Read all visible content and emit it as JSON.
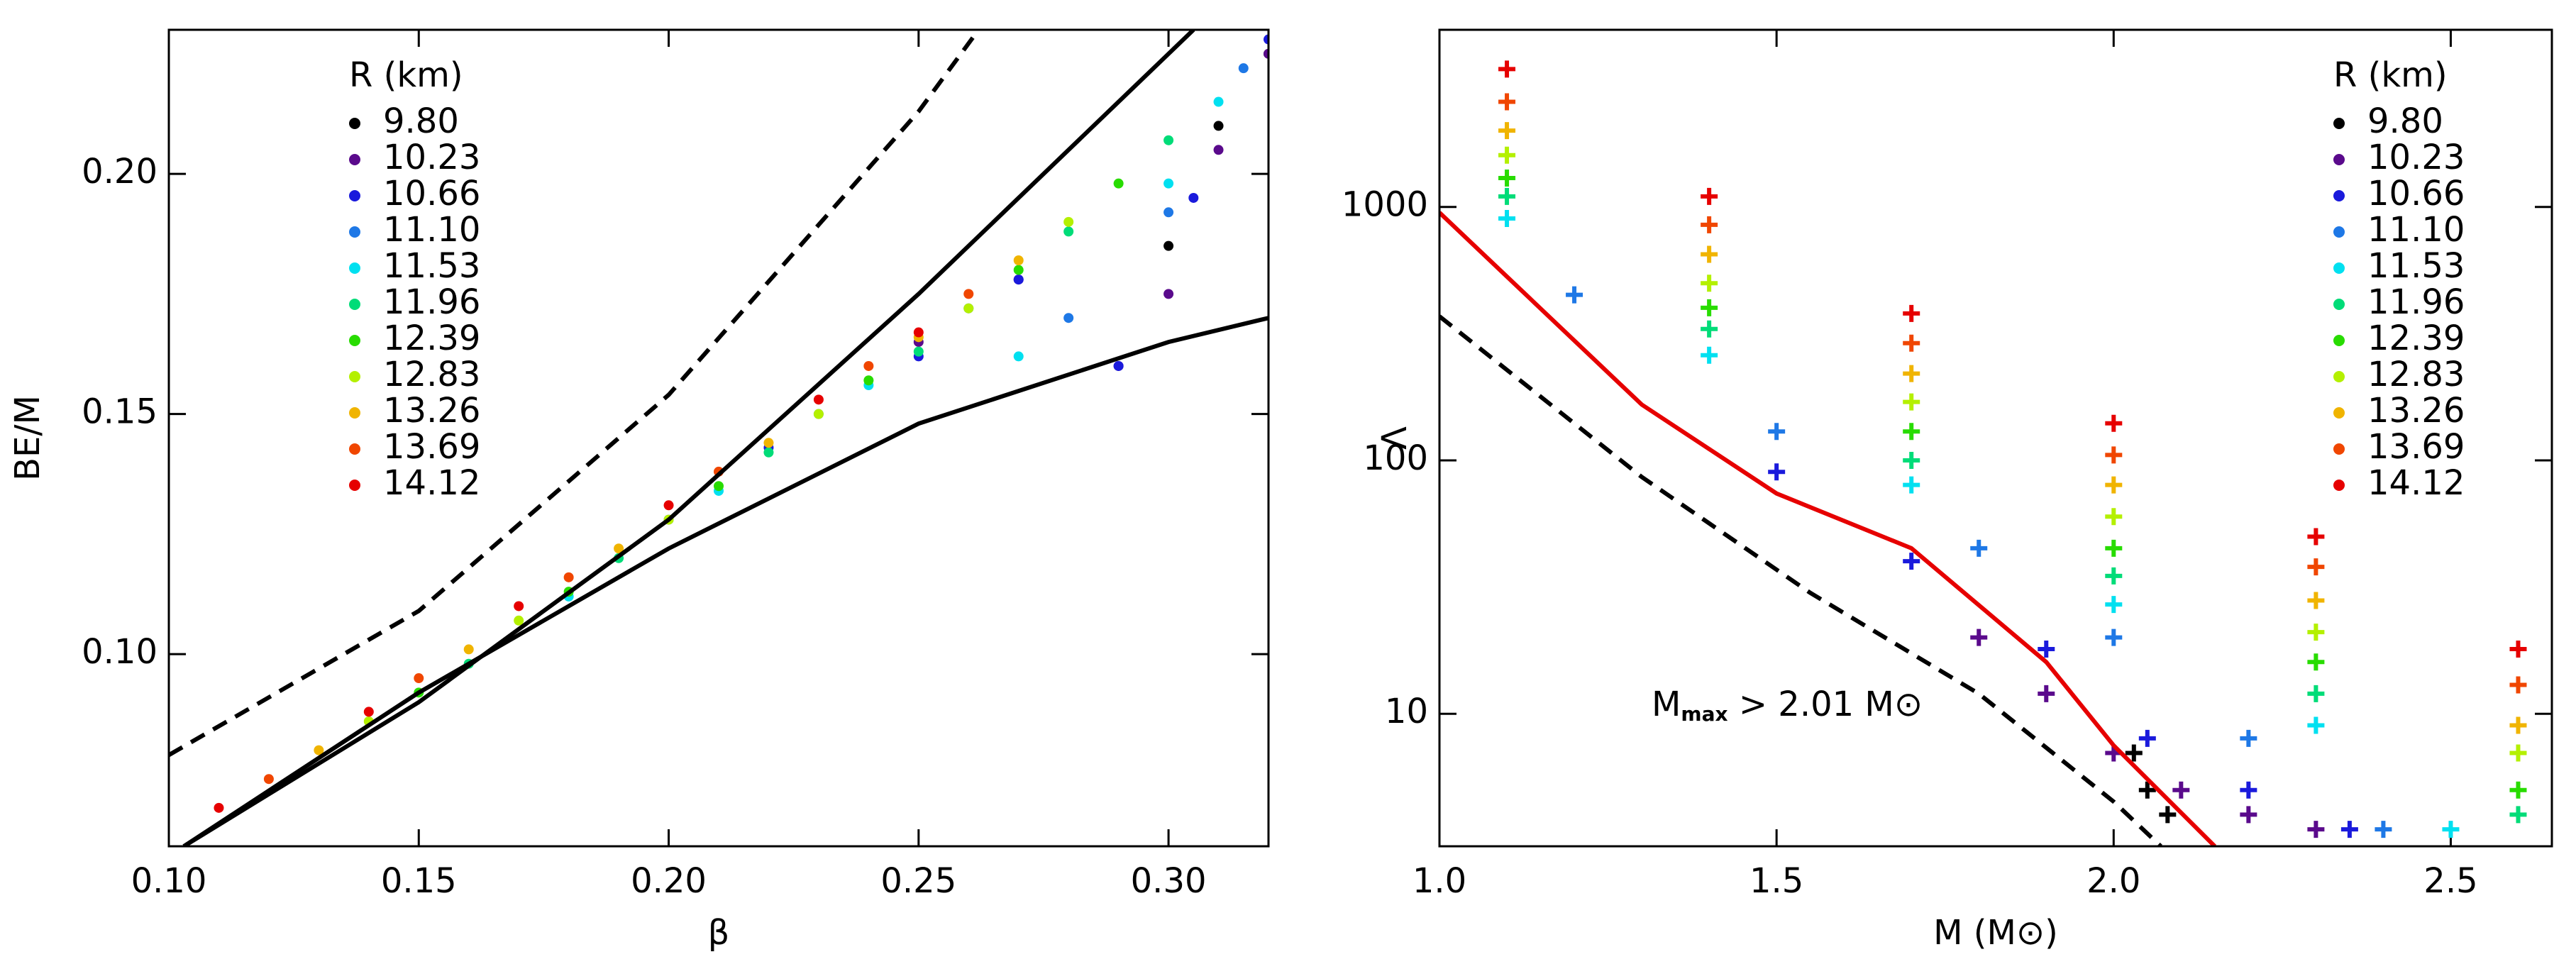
{
  "chart_data": [
    {
      "type": "scatter",
      "xlabel": "β",
      "ylabel": "BE/M",
      "marker": "circle",
      "ylog": false,
      "xlim": [
        0.1,
        0.32
      ],
      "ylim": [
        0.06,
        0.23
      ],
      "xticks": [
        {
          "value": 0.1,
          "label": "0.10"
        },
        0.15,
        {
          "value": 0.2,
          "label": "0.20"
        },
        0.25,
        {
          "value": 0.3,
          "label": "0.30"
        }
      ],
      "yticks": [
        {
          "value": 0.1,
          "label": "0.10"
        },
        0.15,
        {
          "value": 0.2,
          "label": "0.20"
        }
      ],
      "legend_title": "R (km)",
      "legend": "upper left",
      "series": [
        {
          "name": "9.80",
          "color": "#000000",
          "x": [
            0.3,
            0.31,
            0.32
          ],
          "values": [
            0.185,
            0.21,
            0.225
          ]
        },
        {
          "name": "10.23",
          "color": "#5a0a8c",
          "x": [
            0.25,
            0.27,
            0.29,
            0.3,
            0.31,
            0.32
          ],
          "values": [
            0.165,
            0.178,
            0.16,
            0.175,
            0.205,
            0.225
          ]
        },
        {
          "name": "10.66",
          "color": "#1a1adc",
          "x": [
            0.22,
            0.25,
            0.27,
            0.29,
            0.305,
            0.32
          ],
          "values": [
            0.143,
            0.162,
            0.178,
            0.16,
            0.195,
            0.228
          ]
        },
        {
          "name": "11.10",
          "color": "#1e78e6",
          "x": [
            0.2,
            0.23,
            0.26,
            0.28,
            0.3,
            0.315
          ],
          "values": [
            0.128,
            0.15,
            0.172,
            0.17,
            0.192,
            0.222
          ]
        },
        {
          "name": "11.53",
          "color": "#00e0f0",
          "x": [
            0.18,
            0.21,
            0.24,
            0.27,
            0.3,
            0.31
          ],
          "values": [
            0.112,
            0.134,
            0.156,
            0.162,
            0.198,
            0.215
          ]
        },
        {
          "name": "11.96",
          "color": "#00dc78",
          "x": [
            0.16,
            0.19,
            0.22,
            0.25,
            0.28,
            0.3
          ],
          "values": [
            0.098,
            0.12,
            0.142,
            0.163,
            0.188,
            0.207
          ]
        },
        {
          "name": "12.39",
          "color": "#28dc00",
          "x": [
            0.15,
            0.18,
            0.21,
            0.24,
            0.27,
            0.29
          ],
          "values": [
            0.092,
            0.113,
            0.135,
            0.157,
            0.18,
            0.198
          ]
        },
        {
          "name": "12.83",
          "color": "#b4f000",
          "x": [
            0.14,
            0.17,
            0.2,
            0.23,
            0.26,
            0.28
          ],
          "values": [
            0.086,
            0.107,
            0.128,
            0.15,
            0.172,
            0.19
          ]
        },
        {
          "name": "13.26",
          "color": "#f0b400",
          "x": [
            0.13,
            0.16,
            0.19,
            0.22,
            0.25,
            0.27
          ],
          "values": [
            0.08,
            0.101,
            0.122,
            0.144,
            0.166,
            0.182
          ]
        },
        {
          "name": "13.69",
          "color": "#f04600",
          "x": [
            0.12,
            0.15,
            0.18,
            0.21,
            0.24,
            0.26
          ],
          "values": [
            0.074,
            0.095,
            0.116,
            0.138,
            0.16,
            0.175
          ]
        },
        {
          "name": "14.12",
          "color": "#e60000",
          "x": [
            0.11,
            0.14,
            0.17,
            0.2,
            0.23,
            0.25
          ],
          "values": [
            0.068,
            0.088,
            0.11,
            0.131,
            0.153,
            0.167
          ]
        }
      ],
      "curves": [
        {
          "color": "#000000",
          "dashed": true,
          "x": [
            0.1,
            0.15,
            0.2,
            0.25,
            0.262
          ],
          "values": [
            0.079,
            0.109,
            0.154,
            0.213,
            0.23
          ]
        },
        {
          "color": "#000000",
          "dashed": false,
          "x": [
            0.103,
            0.15,
            0.2,
            0.25,
            0.305
          ],
          "values": [
            0.06,
            0.09,
            0.128,
            0.175,
            0.23
          ]
        },
        {
          "color": "#000000",
          "dashed": false,
          "x": [
            0.103,
            0.15,
            0.2,
            0.25,
            0.3,
            0.32
          ],
          "values": [
            0.06,
            0.092,
            0.122,
            0.148,
            0.165,
            0.17
          ]
        }
      ]
    },
    {
      "type": "scatter",
      "xlabel": "M (M⊙)",
      "ylabel": "Λ",
      "marker": "plus",
      "ylog": true,
      "xlim": [
        1.0,
        2.65
      ],
      "ylim": [
        3,
        5000
      ],
      "xticks": [
        {
          "value": 1,
          "label": "1.0"
        },
        1.5,
        {
          "value": 2,
          "label": "2.0"
        },
        2.5
      ],
      "yticks": [
        10,
        100,
        1000
      ],
      "legend_title": "R (km)",
      "legend": "upper right",
      "annotation": {
        "main": "M",
        "sub": "max",
        "rest": " > 2.01 M⊙"
      },
      "series": [
        {
          "name": "9.80",
          "color": "#000000",
          "x": [
            2.03,
            2.05,
            2.08
          ],
          "values": [
            7,
            5,
            4
          ]
        },
        {
          "name": "10.23",
          "color": "#5a0a8c",
          "x": [
            1.8,
            1.9,
            2.0,
            2.1,
            2.2,
            2.3
          ],
          "values": [
            20,
            12,
            7,
            5,
            4,
            3.5
          ]
        },
        {
          "name": "10.66",
          "color": "#1a1adc",
          "x": [
            1.5,
            1.7,
            1.9,
            2.05,
            2.2,
            2.35
          ],
          "values": [
            90,
            40,
            18,
            8,
            5,
            3.5
          ]
        },
        {
          "name": "11.10",
          "color": "#1e78e6",
          "x": [
            1.2,
            1.5,
            1.8,
            2.0,
            2.2,
            2.4
          ],
          "values": [
            450,
            130,
            45,
            20,
            8,
            3.5
          ]
        },
        {
          "name": "11.53",
          "color": "#00e0f0",
          "x": [
            1.1,
            1.4,
            1.7,
            2.0,
            2.3,
            2.5
          ],
          "values": [
            900,
            260,
            80,
            27,
            9,
            3.5
          ]
        },
        {
          "name": "11.96",
          "color": "#00dc78",
          "x": [
            1.1,
            1.4,
            1.7,
            2.0,
            2.3,
            2.6
          ],
          "values": [
            1100,
            330,
            100,
            35,
            12,
            4
          ]
        },
        {
          "name": "12.39",
          "color": "#28dc00",
          "x": [
            1.1,
            1.4,
            1.7,
            2.0,
            2.3,
            2.6
          ],
          "values": [
            1300,
            400,
            130,
            45,
            16,
            5
          ]
        },
        {
          "name": "12.83",
          "color": "#b4f000",
          "x": [
            1.1,
            1.4,
            1.7,
            2.0,
            2.3,
            2.6
          ],
          "values": [
            1600,
            500,
            170,
            60,
            21,
            7
          ]
        },
        {
          "name": "13.26",
          "color": "#f0b400",
          "x": [
            1.1,
            1.4,
            1.7,
            2.0,
            2.3,
            2.6
          ],
          "values": [
            2000,
            650,
            220,
            80,
            28,
            9
          ]
        },
        {
          "name": "13.69",
          "color": "#f04600",
          "x": [
            1.1,
            1.4,
            1.7,
            2.0,
            2.3,
            2.6
          ],
          "values": [
            2600,
            850,
            290,
            105,
            38,
            13
          ]
        },
        {
          "name": "14.12",
          "color": "#e60000",
          "x": [
            1.1,
            1.4,
            1.7,
            2.0,
            2.3,
            2.6
          ],
          "values": [
            3500,
            1100,
            380,
            140,
            50,
            18
          ]
        }
      ],
      "curves": [
        {
          "color": "#e60000",
          "dashed": false,
          "x": [
            1.0,
            1.3,
            1.5,
            1.7,
            1.9,
            2.0,
            2.15
          ],
          "values": [
            950,
            166,
            74,
            45,
            16,
            7.5,
            3
          ]
        },
        {
          "color": "#000000",
          "dashed": true,
          "x": [
            1.0,
            1.3,
            1.55,
            1.8,
            2.0,
            2.07
          ],
          "values": [
            370,
            86,
            30,
            12,
            4.5,
            3
          ]
        }
      ]
    }
  ]
}
